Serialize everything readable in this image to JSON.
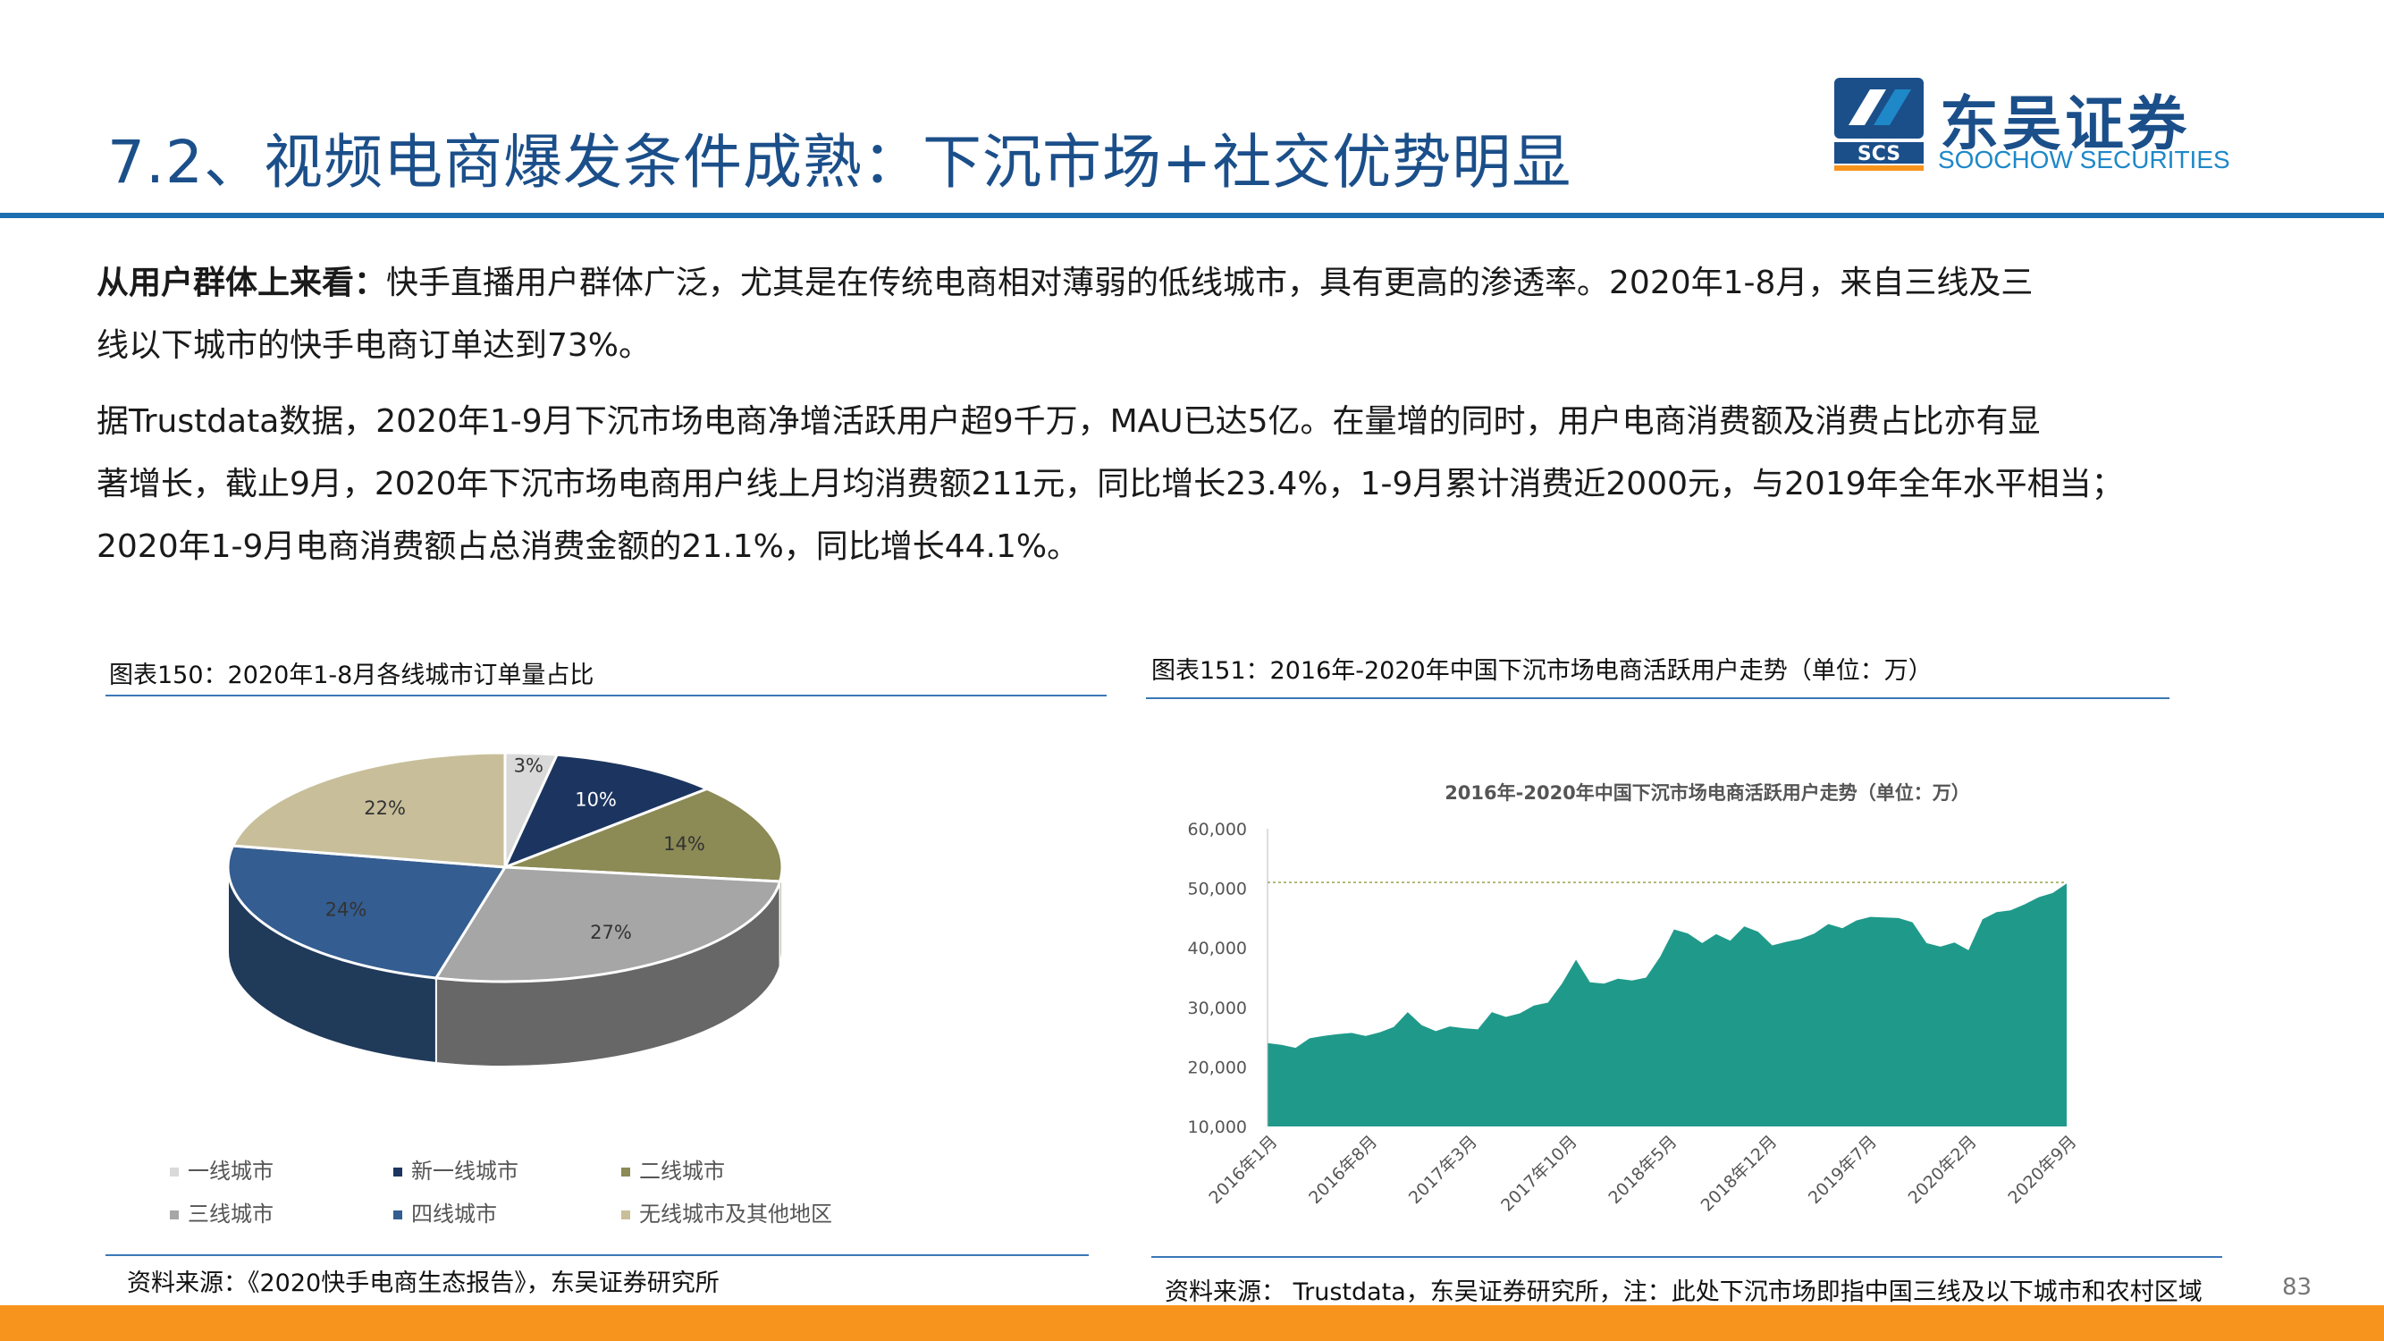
{
  "header": {
    "title": "7.2、视频电商爆发条件成熟：下沉市场+社交优势明显",
    "logo_cn": "东吴证券",
    "logo_en": "SOOCHOW SECURITIES",
    "logo_mark": "SCS"
  },
  "paragraphs": {
    "p1_bold": "从用户群体上来看：",
    "p1_line1": "快手直播用户群体广泛，尤其是在传统电商相对薄弱的低线城市，具有更高的渗透率。2020年1-8月，来自三线及三",
    "p1_line2": "线以下城市的快手电商订单达到73%。",
    "p2_line1": "据Trustdata数据，2020年1-9月下沉市场电商净增活跃用户超9千万，MAU已达5亿。在量增的同时，用户电商消费额及消费占比亦有显",
    "p2_line2": "著增长，截止9月，2020年下沉市场电商用户线上月均消费额211元，同比增长23.4%，1-9月累计消费近2000元，与2019年全年水平相当；",
    "p2_line3": "2020年1-9月电商消费额占总消费金额的21.1%，同比增长44.1%。"
  },
  "left_figure": {
    "caption": "图表150：2020年1-8月各线城市订单量占比",
    "source": "资料来源：《2020快手电商生态报告》，东吴证券研究所"
  },
  "right_figure": {
    "caption": "图表151：2016年-2020年中国下沉市场电商活跃用户走势（单位：万）",
    "source": "资料来源： Trustdata，东吴证券研究所，注：此处下沉市场即指中国三线及以下城市和农村区域"
  },
  "page_number": "83",
  "colors": {
    "title_blue": "#1b4f8a",
    "rule_blue": "#1b6fb0",
    "orange_bar": "#f7941d",
    "area_teal": "#1f9a8a"
  },
  "chart_data": [
    {
      "type": "pie",
      "title": "",
      "labels": [
        "一线城市",
        "新一线城市",
        "二线城市",
        "三线城市",
        "四线城市",
        "无线城市及其他地区"
      ],
      "values": [
        3,
        10,
        14,
        27,
        24,
        22
      ],
      "data_labels": [
        "3%",
        "10%",
        "14%",
        "27%",
        "24%",
        "22%"
      ],
      "colors": [
        "#d9d9d9",
        "#1c3560",
        "#8c8a55",
        "#a6a6a6",
        "#345d91",
        "#c8bf9a"
      ],
      "legend_position": "bottom"
    },
    {
      "type": "area",
      "title": "2016年-2020年中国下沉市场电商活跃用户走势（单位：万）",
      "x_tick_labels": [
        "2016年1月",
        "2016年8月",
        "2017年3月",
        "2017年10月",
        "2018年5月",
        "2018年12月",
        "2019年7月",
        "2020年2月",
        "2020年9月"
      ],
      "y_tick_labels": [
        "10,000",
        "20,000",
        "30,000",
        "40,000",
        "50,000",
        "60,000"
      ],
      "ylim": [
        10000,
        60000
      ],
      "reference_line": 51000,
      "grid": false,
      "values": [
        24000,
        23700,
        23200,
        24800,
        25200,
        25500,
        25700,
        25200,
        25800,
        26700,
        29200,
        27000,
        26000,
        26800,
        26500,
        26300,
        29200,
        28400,
        29000,
        30300,
        30800,
        34000,
        38000,
        34200,
        34000,
        34800,
        34500,
        35000,
        38500,
        43100,
        42400,
        40800,
        42300,
        41200,
        43600,
        42700,
        40400,
        41000,
        41500,
        42400,
        44000,
        43300,
        44600,
        45200,
        45100,
        45000,
        44300,
        40800,
        40200,
        40900,
        39600,
        44800,
        46000,
        46300,
        47300,
        48500,
        49200,
        50800
      ]
    }
  ]
}
